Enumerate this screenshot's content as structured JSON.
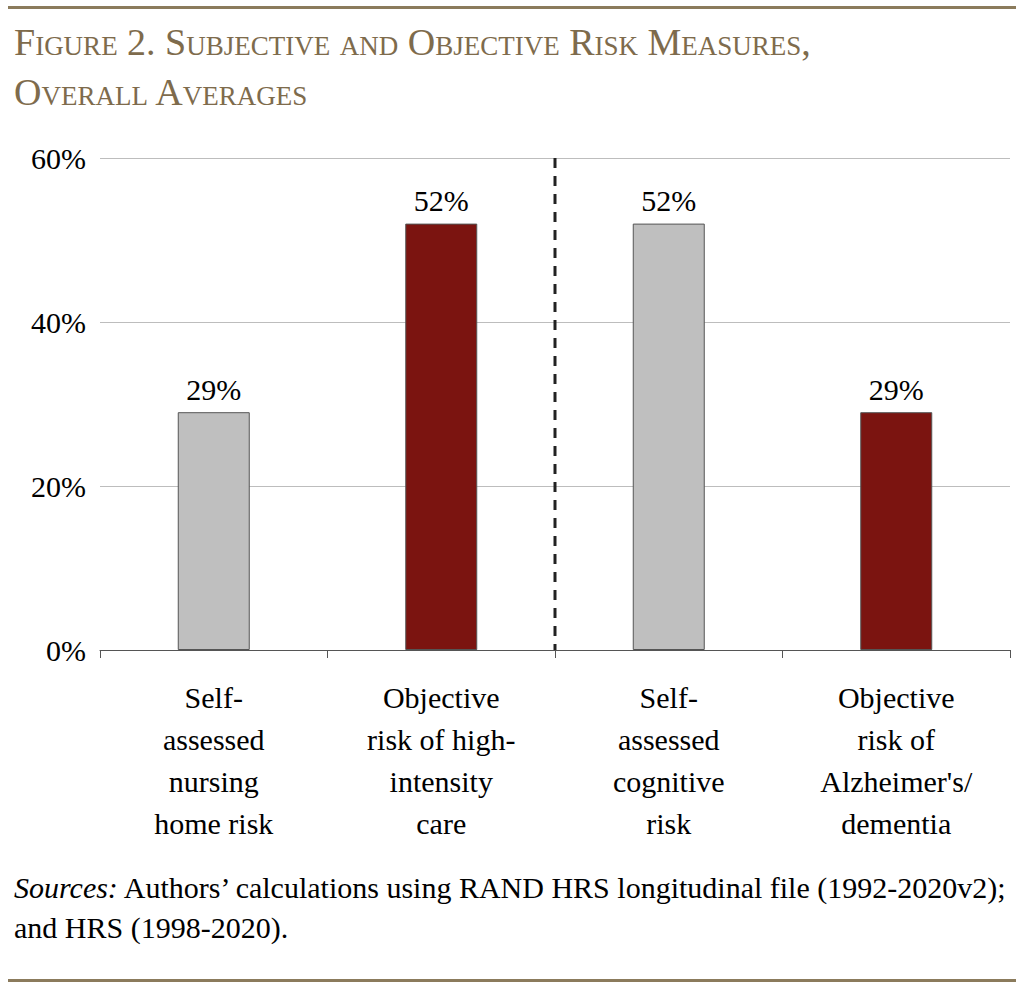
{
  "chart_data": {
    "type": "bar",
    "title": "Figure 2. Subjective and Objective Risk Measures,\nOverall Averages",
    "categories": [
      "Self-\nassessed\nnursing\nhome risk",
      "Objective\nrisk of high-\nintensity\ncare",
      "Self-\nassessed\ncognitive\nrisk",
      "Objective\nrisk of\nAlzheimer's/\ndementia"
    ],
    "values": [
      29,
      52,
      52,
      29
    ],
    "value_labels": [
      "29%",
      "52%",
      "52%",
      "29%"
    ],
    "colors": [
      "#bfbfbf",
      "#7b1410",
      "#bfbfbf",
      "#7b1410"
    ],
    "ylim": [
      0,
      60
    ],
    "yticks": [
      {
        "value": 0,
        "label": "0%"
      },
      {
        "value": 20,
        "label": "20%"
      },
      {
        "value": 40,
        "label": "40%"
      },
      {
        "value": 60,
        "label": "60%"
      }
    ],
    "grid": true,
    "data_labels": true,
    "source_label": "Sources:",
    "source": "Authors’ calculations using RAND HRS longitudinal file (1992-2020v2); and HRS (1998-2020)."
  }
}
